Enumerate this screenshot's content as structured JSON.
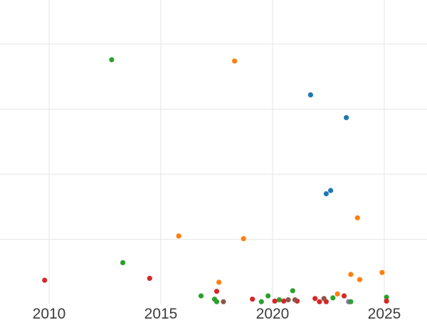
{
  "chart_data": {
    "type": "scatter",
    "title": "",
    "xlabel": "",
    "ylabel": "",
    "legend": "none",
    "grid": true,
    "x_ticks": [
      "2010",
      "2015",
      "2020",
      "2025"
    ],
    "x_tick_years": [
      2010,
      2015,
      2020,
      2025
    ],
    "x_range": [
      2007.8,
      2026.9
    ],
    "y_range_units": [
      0,
      4.68
    ],
    "y_gridlines_units": [
      1,
      2,
      3,
      4
    ],
    "note": "No y-axis tick labels are visible; y values are expressed in gridline units (one horizontal gridline spacing = 1.0, bottom plot edge = 0).",
    "series": [
      {
        "name": "blue",
        "color": "#1f77b4",
        "points": [
          [
            2021.7,
            3.22
          ],
          [
            2022.4,
            1.7
          ],
          [
            2022.6,
            1.75
          ],
          [
            2023.3,
            2.87
          ]
        ]
      },
      {
        "name": "orange",
        "color": "#ff7f0e",
        "points": [
          [
            2015.8,
            1.05
          ],
          [
            2017.6,
            0.34
          ],
          [
            2018.3,
            3.74
          ],
          [
            2018.7,
            1.01
          ],
          [
            2022.9,
            0.16
          ],
          [
            2023.5,
            0.46
          ],
          [
            2023.8,
            1.33
          ],
          [
            2023.9,
            0.38
          ],
          [
            2024.9,
            0.49
          ]
        ]
      },
      {
        "name": "purple",
        "color": "#9467bd",
        "points": [
          [
            2023.4,
            0.04
          ]
        ]
      },
      {
        "name": "green",
        "color": "#2ca02c",
        "points": [
          [
            2012.8,
            3.76
          ],
          [
            2013.3,
            0.64
          ],
          [
            2016.8,
            0.13
          ],
          [
            2017.4,
            0.08
          ],
          [
            2017.5,
            0.04
          ],
          [
            2019.5,
            0.04
          ],
          [
            2019.8,
            0.13
          ],
          [
            2020.3,
            0.07
          ],
          [
            2020.9,
            0.21
          ],
          [
            2022.7,
            0.1
          ],
          [
            2023.5,
            0.04
          ],
          [
            2025.1,
            0.11
          ]
        ]
      },
      {
        "name": "red",
        "color": "#d62728",
        "points": [
          [
            2009.8,
            0.37
          ],
          [
            2014.5,
            0.4
          ],
          [
            2017.5,
            0.2
          ],
          [
            2019.1,
            0.08
          ],
          [
            2020.1,
            0.05
          ],
          [
            2020.5,
            0.05
          ],
          [
            2021.1,
            0.05
          ],
          [
            2021.9,
            0.09
          ],
          [
            2022.1,
            0.04
          ],
          [
            2022.4,
            0.04
          ],
          [
            2023.2,
            0.13
          ],
          [
            2025.1,
            0.05
          ]
        ]
      },
      {
        "name": "brown",
        "color": "#8c564b",
        "points": [
          [
            2017.8,
            0.04
          ],
          [
            2020.7,
            0.07
          ],
          [
            2021.0,
            0.07
          ],
          [
            2022.3,
            0.09
          ]
        ]
      }
    ]
  }
}
